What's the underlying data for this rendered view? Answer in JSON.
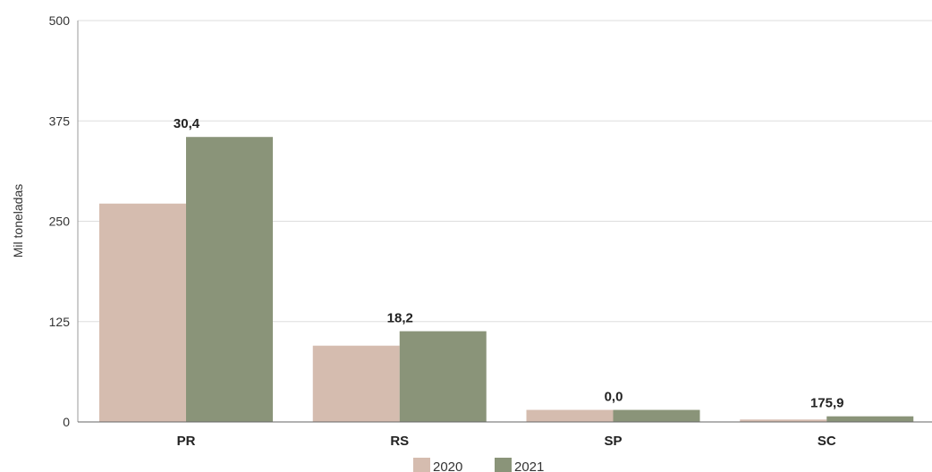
{
  "chart_data": {
    "type": "bar",
    "categories": [
      "PR",
      "RS",
      "SP",
      "SC"
    ],
    "series": [
      {
        "name": "2020",
        "color": "#d5bcaf",
        "values": [
          272,
          95,
          15,
          3
        ]
      },
      {
        "name": "2021",
        "color": "#8a9479",
        "values": [
          355,
          113,
          15,
          7
        ]
      }
    ],
    "data_labels": [
      "30,4",
      "18,2",
      "0,0",
      "175,9"
    ],
    "ylabel": "Mil toneladas",
    "ylim": [
      0,
      500
    ],
    "yticks": [
      0,
      125,
      250,
      375,
      500
    ],
    "grid": true,
    "legend": "bottom"
  }
}
